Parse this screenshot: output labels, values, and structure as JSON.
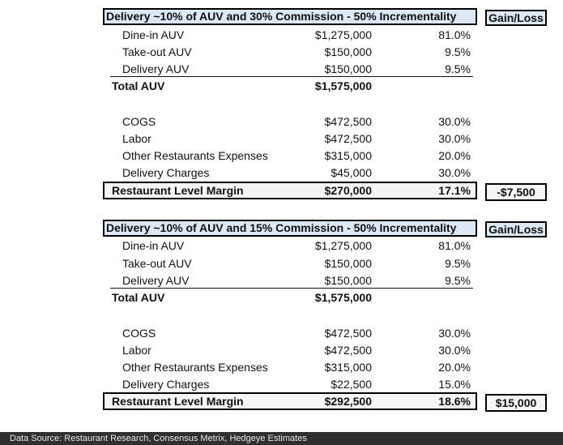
{
  "tables": [
    {
      "title": "Delivery ~10% of AUV and 30% Commission - 50% Incrementality",
      "gain_loss_header": "Gain/Loss",
      "auv_rows": [
        {
          "label": "Dine-in AUV",
          "amount": "$1,275,000",
          "pct": "81.0%"
        },
        {
          "label": "Take-out AUV",
          "amount": "$150,000",
          "pct": "9.5%"
        },
        {
          "label": "Delivery AUV",
          "amount": "$150,000",
          "pct": "9.5%"
        }
      ],
      "total": {
        "label": "Total AUV",
        "amount": "$1,575,000"
      },
      "expense_rows": [
        {
          "label": "COGS",
          "amount": "$472,500",
          "pct": "30.0%"
        },
        {
          "label": "Labor",
          "amount": "$472,500",
          "pct": "30.0%"
        },
        {
          "label": "Other Restaurants Expenses",
          "amount": "$315,000",
          "pct": "20.0%"
        },
        {
          "label": "Delivery Charges",
          "amount": "$45,000",
          "pct": "30.0%"
        }
      ],
      "margin": {
        "label": "Restaurant Level Margin",
        "amount": "$270,000",
        "pct": "17.1%"
      },
      "gain_loss": "-$7,500"
    },
    {
      "title": "Delivery ~10% of AUV and 15% Commission - 50% Incrementality",
      "gain_loss_header": "Gain/Loss",
      "auv_rows": [
        {
          "label": "Dine-in AUV",
          "amount": "$1,275,000",
          "pct": "81.0%"
        },
        {
          "label": "Take-out AUV",
          "amount": "$150,000",
          "pct": "9.5%"
        },
        {
          "label": "Delivery AUV",
          "amount": "$150,000",
          "pct": "9.5%"
        }
      ],
      "total": {
        "label": "Total AUV",
        "amount": "$1,575,000"
      },
      "expense_rows": [
        {
          "label": "COGS",
          "amount": "$472,500",
          "pct": "30.0%"
        },
        {
          "label": "Labor",
          "amount": "$472,500",
          "pct": "30.0%"
        },
        {
          "label": "Other Restaurants Expenses",
          "amount": "$315,000",
          "pct": "20.0%"
        },
        {
          "label": "Delivery Charges",
          "amount": "$22,500",
          "pct": "15.0%"
        }
      ],
      "margin": {
        "label": "Restaurant Level Margin",
        "amount": "$292,500",
        "pct": "18.6%"
      },
      "gain_loss": "$15,000"
    }
  ],
  "footer": {
    "source": "Data Source: Restaurant Research, Consensus Metrix, Hedgeye Estimates"
  }
}
